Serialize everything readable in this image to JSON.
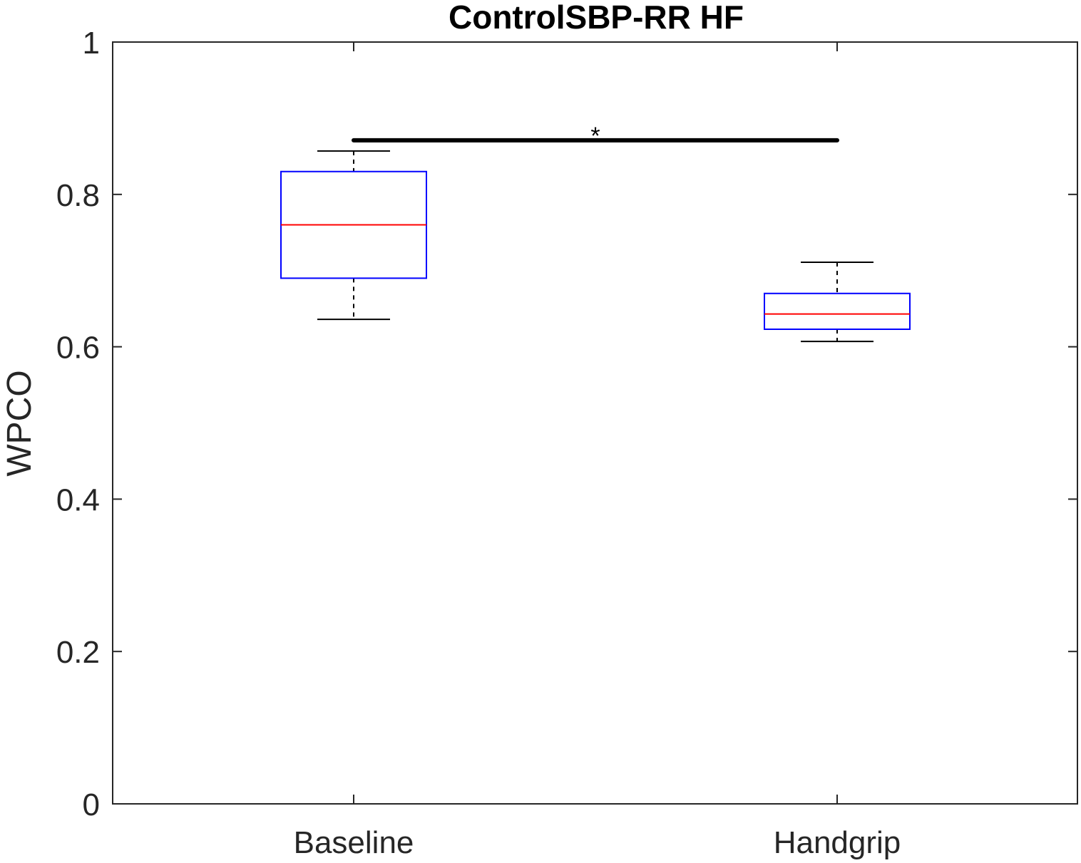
{
  "chart_data": {
    "type": "box",
    "title": "ControlSBP-RR HF",
    "xlabel": "",
    "ylabel": "WPCO",
    "ylim": [
      0,
      1
    ],
    "yticks": [
      0,
      0.2,
      0.4,
      0.6,
      0.8,
      1
    ],
    "ytick_labels": [
      "0",
      "0.2",
      "0.4",
      "0.6",
      "0.8",
      "1"
    ],
    "categories": [
      "Baseline",
      "Handgrip"
    ],
    "boxes": [
      {
        "category": "Baseline",
        "whisker_low": 0.636,
        "q1": 0.69,
        "median": 0.76,
        "q3": 0.83,
        "whisker_high": 0.857
      },
      {
        "category": "Handgrip",
        "whisker_low": 0.607,
        "q1": 0.623,
        "median": 0.643,
        "q3": 0.67,
        "whisker_high": 0.711
      }
    ],
    "significance": [
      {
        "from": "Baseline",
        "to": "Handgrip",
        "y": 0.871,
        "label": "*"
      }
    ],
    "grid": false,
    "colors": {
      "box": "#0000ff",
      "median": "#ff0000",
      "whisker": "#000000",
      "axis": "#262626",
      "significance": "#000000"
    }
  }
}
